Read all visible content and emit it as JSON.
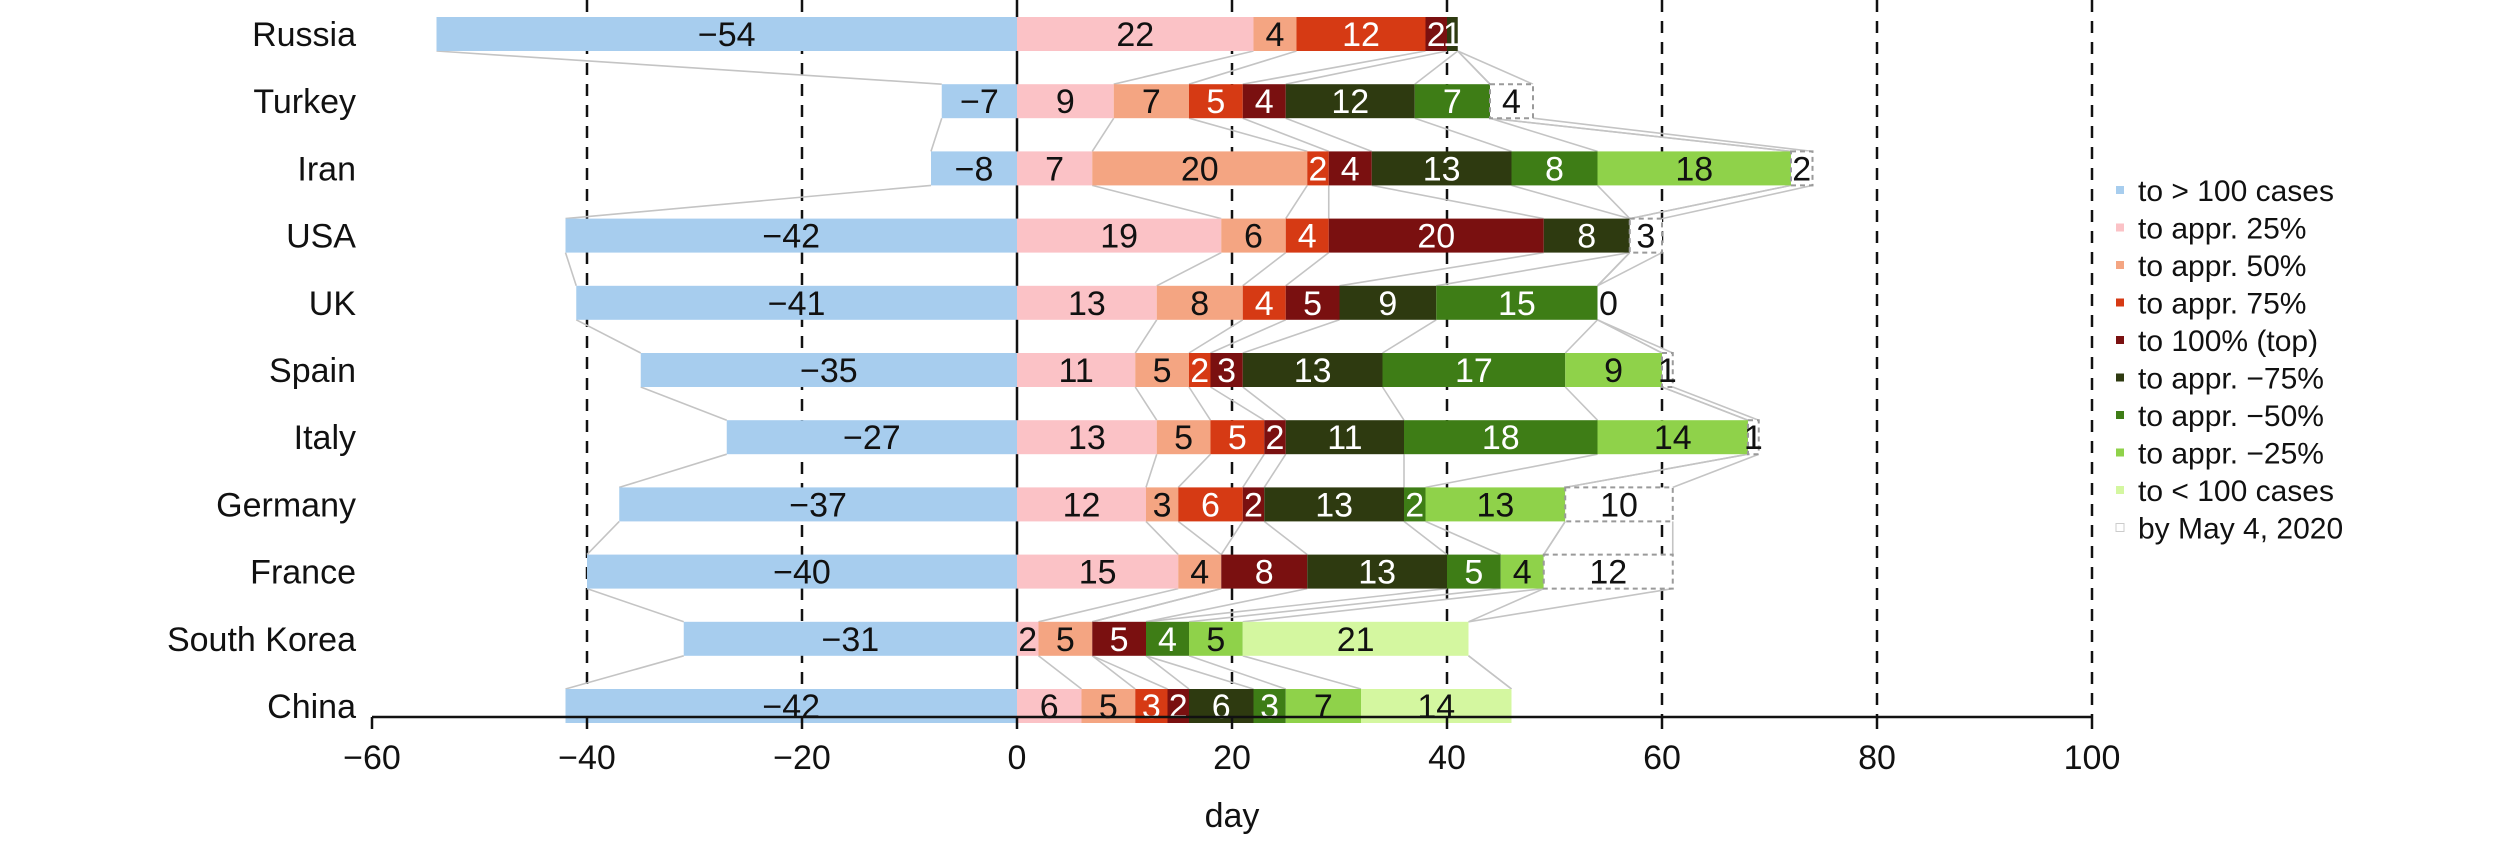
{
  "colors": {
    "pre": "#a7cdee",
    "stages": [
      "#fbc2c6",
      "#f4a582",
      "#d63a14",
      "#7a1010",
      "#2e3a10",
      "#3e7d16",
      "#8fd24a",
      "#d4f7a0"
    ],
    "projected": "#ffffff",
    "connector": "#c4c4c4"
  },
  "chart_data": {
    "type": "bar",
    "orientation": "horizontal",
    "stacked": true,
    "xlabel": "day",
    "ylabel": "",
    "xlim": [
      -60,
      100
    ],
    "xticks": [
      -60,
      -40,
      -20,
      0,
      20,
      40,
      60,
      80,
      100
    ],
    "gridlines": [
      -40,
      -20,
      20,
      40,
      60,
      80,
      100
    ],
    "grid": "vertical dashed",
    "legend_position": "right",
    "categories": [
      "Russia",
      "Turkey",
      "Iran",
      "USA",
      "UK",
      "Spain",
      "Italy",
      "Germany",
      "France",
      "South Korea",
      "China"
    ],
    "series": [
      {
        "name": "to > 100 cases",
        "values": [
          -54,
          -7,
          -8,
          -42,
          -41,
          -35,
          -27,
          -37,
          -40,
          -31,
          -42
        ]
      },
      {
        "name": "to appr. 25%",
        "values": [
          22,
          9,
          7,
          19,
          13,
          11,
          13,
          12,
          15,
          2,
          6
        ]
      },
      {
        "name": "to appr. 50%",
        "values": [
          4,
          7,
          20,
          6,
          8,
          5,
          5,
          3,
          4,
          5,
          5
        ]
      },
      {
        "name": "to appr. 75%",
        "values": [
          12,
          5,
          2,
          4,
          4,
          2,
          5,
          6,
          0,
          0,
          3
        ]
      },
      {
        "name": "to 100% (top)",
        "values": [
          2,
          4,
          4,
          20,
          5,
          3,
          2,
          2,
          8,
          5,
          2
        ]
      },
      {
        "name": "to appr. −75%",
        "values": [
          1,
          12,
          13,
          8,
          9,
          13,
          11,
          13,
          13,
          0,
          6
        ]
      },
      {
        "name": "to appr. −50%",
        "values": [
          0,
          7,
          8,
          0,
          15,
          17,
          18,
          2,
          5,
          4,
          3
        ]
      },
      {
        "name": "to appr. −25%",
        "values": [
          0,
          0,
          18,
          0,
          0,
          9,
          14,
          13,
          4,
          5,
          7
        ]
      },
      {
        "name": "to < 100 cases",
        "values": [
          0,
          0,
          0,
          0,
          0,
          0,
          0,
          0,
          0,
          21,
          14
        ]
      },
      {
        "name": "by May 4, 2020",
        "values": [
          0,
          4,
          2,
          3,
          0,
          1,
          1,
          10,
          12,
          0,
          0
        ]
      }
    ],
    "data_labels": [
      [
        "−54",
        "22",
        "4",
        "12",
        "2",
        "1",
        "",
        "",
        "",
        "",
        ""
      ],
      [
        "−7",
        "9",
        "7",
        "5",
        "4",
        "12",
        "7",
        "",
        "",
        "4",
        ""
      ],
      [
        "−8",
        "7",
        "20",
        "2",
        "4",
        "13",
        "8",
        "18",
        "",
        "2",
        ""
      ],
      [
        "−42",
        "19",
        "6",
        "4",
        "20",
        "8",
        "",
        "",
        "",
        "3",
        ""
      ],
      [
        "−41",
        "13",
        "8",
        "4",
        "5",
        "9",
        "15",
        "",
        "",
        "0",
        ""
      ],
      [
        "−35",
        "11",
        "5",
        "2",
        "3",
        "13",
        "17",
        "9",
        "",
        "1",
        ""
      ],
      [
        "−27",
        "13",
        "5",
        "5",
        "2",
        "11",
        "18",
        "14",
        "",
        "1",
        ""
      ],
      [
        "−37",
        "12",
        "3",
        "6",
        "2",
        "13",
        "2",
        "13",
        "",
        "10",
        ""
      ],
      [
        "−40",
        "15",
        "4",
        "0",
        "8",
        "13",
        "5",
        "4",
        "",
        "12",
        ""
      ],
      [
        "−31",
        "2",
        "5",
        "0",
        "5",
        "0",
        "4",
        "5",
        "21",
        "",
        ""
      ],
      [
        "−42",
        "6",
        "5",
        "3",
        "2",
        "6",
        "3",
        "7",
        "14",
        "",
        ""
      ]
    ]
  }
}
